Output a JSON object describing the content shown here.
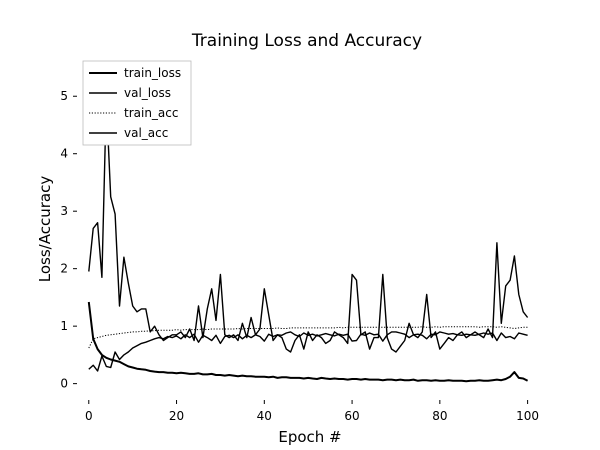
{
  "chart_data": {
    "type": "line",
    "title": "Training Loss and Accuracy",
    "xlabel": "Epoch #",
    "ylabel": "Loss/Accuracy",
    "xlim": [
      -2,
      101
    ],
    "ylim": [
      -0.25,
      5.7
    ],
    "xticks": [
      0,
      20,
      40,
      60,
      80,
      100
    ],
    "yticks": [
      0,
      1,
      2,
      3,
      4,
      5
    ],
    "grid": false,
    "legend_position": "top-left",
    "series": [
      {
        "name": "train_loss",
        "style": "solid-bold",
        "color": "#000000",
        "x": [
          0,
          1,
          2,
          3,
          4,
          5,
          6,
          7,
          8,
          9,
          10,
          11,
          12,
          13,
          14,
          15,
          16,
          17,
          18,
          19,
          20,
          21,
          22,
          23,
          24,
          25,
          26,
          27,
          28,
          29,
          30,
          31,
          32,
          33,
          34,
          35,
          36,
          37,
          38,
          39,
          40,
          41,
          42,
          43,
          44,
          45,
          46,
          47,
          48,
          49,
          50,
          51,
          52,
          53,
          54,
          55,
          56,
          57,
          58,
          59,
          60,
          61,
          62,
          63,
          64,
          65,
          66,
          67,
          68,
          69,
          70,
          71,
          72,
          73,
          74,
          75,
          76,
          77,
          78,
          79,
          80,
          81,
          82,
          83,
          84,
          85,
          86,
          87,
          88,
          89,
          90,
          91,
          92,
          93,
          94,
          95,
          96,
          97,
          98,
          99,
          100
        ],
        "y": [
          1.42,
          0.78,
          0.6,
          0.5,
          0.45,
          0.42,
          0.4,
          0.38,
          0.34,
          0.3,
          0.28,
          0.26,
          0.25,
          0.24,
          0.22,
          0.21,
          0.2,
          0.2,
          0.19,
          0.19,
          0.18,
          0.19,
          0.18,
          0.17,
          0.17,
          0.18,
          0.16,
          0.16,
          0.17,
          0.15,
          0.15,
          0.14,
          0.15,
          0.14,
          0.13,
          0.14,
          0.13,
          0.13,
          0.12,
          0.12,
          0.12,
          0.11,
          0.12,
          0.1,
          0.11,
          0.11,
          0.1,
          0.1,
          0.1,
          0.09,
          0.1,
          0.09,
          0.08,
          0.1,
          0.09,
          0.08,
          0.09,
          0.08,
          0.08,
          0.07,
          0.08,
          0.08,
          0.07,
          0.08,
          0.07,
          0.07,
          0.07,
          0.06,
          0.07,
          0.07,
          0.06,
          0.07,
          0.06,
          0.06,
          0.07,
          0.05,
          0.06,
          0.06,
          0.05,
          0.06,
          0.05,
          0.05,
          0.06,
          0.05,
          0.05,
          0.05,
          0.04,
          0.05,
          0.05,
          0.06,
          0.05,
          0.05,
          0.06,
          0.07,
          0.06,
          0.08,
          0.12,
          0.2,
          0.1,
          0.09,
          0.05
        ]
      },
      {
        "name": "val_loss",
        "style": "solid",
        "color": "#000000",
        "x": [
          0,
          1,
          2,
          3,
          4,
          5,
          6,
          7,
          8,
          9,
          10,
          11,
          12,
          13,
          14,
          15,
          16,
          17,
          18,
          19,
          20,
          21,
          22,
          23,
          24,
          25,
          26,
          27,
          28,
          29,
          30,
          31,
          32,
          33,
          34,
          35,
          36,
          37,
          38,
          39,
          40,
          41,
          42,
          43,
          44,
          45,
          46,
          47,
          48,
          49,
          50,
          51,
          52,
          53,
          54,
          55,
          56,
          57,
          58,
          59,
          60,
          61,
          62,
          63,
          64,
          65,
          66,
          67,
          68,
          69,
          70,
          71,
          72,
          73,
          74,
          75,
          76,
          77,
          78,
          79,
          80,
          81,
          82,
          83,
          84,
          85,
          86,
          87,
          88,
          89,
          90,
          91,
          92,
          93,
          94,
          95,
          96,
          97,
          98,
          99,
          100
        ],
        "y": [
          1.95,
          2.7,
          2.8,
          1.85,
          4.95,
          3.25,
          2.95,
          1.35,
          2.2,
          1.75,
          1.35,
          1.25,
          1.3,
          1.3,
          0.9,
          1.0,
          0.85,
          0.75,
          0.8,
          0.85,
          0.85,
          0.9,
          0.8,
          0.95,
          0.75,
          1.35,
          0.8,
          1.3,
          1.65,
          1.1,
          1.9,
          0.85,
          0.8,
          0.85,
          0.75,
          1.05,
          0.8,
          1.15,
          0.85,
          0.95,
          1.65,
          1.2,
          0.75,
          0.85,
          0.8,
          0.6,
          0.55,
          0.75,
          0.85,
          0.6,
          0.9,
          0.75,
          0.85,
          0.8,
          0.7,
          0.75,
          0.9,
          0.85,
          0.8,
          0.7,
          1.9,
          1.8,
          0.85,
          0.9,
          0.6,
          0.8,
          0.8,
          1.9,
          0.8,
          0.6,
          0.55,
          0.65,
          0.75,
          1.05,
          0.85,
          0.8,
          0.9,
          1.55,
          0.8,
          0.9,
          0.6,
          0.7,
          0.8,
          0.75,
          0.85,
          0.9,
          0.8,
          0.85,
          0.9,
          0.85,
          0.8,
          0.95,
          0.8,
          2.45,
          1.05,
          1.7,
          1.8,
          2.22,
          1.55,
          1.25,
          1.15
        ]
      },
      {
        "name": "train_acc",
        "style": "dotted",
        "color": "#000000",
        "x": [
          0,
          1,
          2,
          3,
          4,
          5,
          6,
          7,
          8,
          9,
          10,
          11,
          12,
          13,
          14,
          15,
          16,
          17,
          18,
          19,
          20,
          21,
          22,
          23,
          24,
          25,
          26,
          27,
          28,
          29,
          30,
          31,
          32,
          33,
          34,
          35,
          36,
          37,
          38,
          39,
          40,
          41,
          42,
          43,
          44,
          45,
          46,
          47,
          48,
          49,
          50,
          51,
          52,
          53,
          54,
          55,
          56,
          57,
          58,
          59,
          60,
          61,
          62,
          63,
          64,
          65,
          66,
          67,
          68,
          69,
          70,
          71,
          72,
          73,
          74,
          75,
          76,
          77,
          78,
          79,
          80,
          81,
          82,
          83,
          84,
          85,
          86,
          87,
          88,
          89,
          90,
          91,
          92,
          93,
          94,
          95,
          96,
          97,
          98,
          99,
          100
        ],
        "y": [
          0.62,
          0.78,
          0.8,
          0.82,
          0.84,
          0.85,
          0.86,
          0.87,
          0.88,
          0.89,
          0.9,
          0.9,
          0.91,
          0.91,
          0.92,
          0.92,
          0.93,
          0.93,
          0.93,
          0.93,
          0.94,
          0.93,
          0.94,
          0.94,
          0.94,
          0.94,
          0.95,
          0.94,
          0.95,
          0.95,
          0.95,
          0.95,
          0.95,
          0.95,
          0.96,
          0.95,
          0.96,
          0.96,
          0.96,
          0.96,
          0.96,
          0.96,
          0.96,
          0.97,
          0.96,
          0.96,
          0.97,
          0.97,
          0.97,
          0.97,
          0.97,
          0.97,
          0.97,
          0.97,
          0.97,
          0.97,
          0.97,
          0.98,
          0.97,
          0.98,
          0.98,
          0.98,
          0.98,
          0.98,
          0.98,
          0.98,
          0.98,
          0.98,
          0.98,
          0.98,
          0.98,
          0.98,
          0.98,
          0.98,
          0.98,
          0.98,
          0.99,
          0.98,
          0.98,
          0.99,
          0.98,
          0.99,
          0.99,
          0.99,
          0.99,
          0.99,
          0.99,
          0.99,
          0.99,
          0.98,
          0.99,
          0.99,
          0.99,
          0.98,
          0.99,
          0.98,
          0.97,
          0.96,
          0.97,
          0.98,
          0.98
        ]
      },
      {
        "name": "val_acc",
        "style": "solid",
        "color": "#000000",
        "x": [
          0,
          1,
          2,
          3,
          4,
          5,
          6,
          7,
          8,
          9,
          10,
          11,
          12,
          13,
          14,
          15,
          16,
          17,
          18,
          19,
          20,
          21,
          22,
          23,
          24,
          25,
          26,
          27,
          28,
          29,
          30,
          31,
          32,
          33,
          34,
          35,
          36,
          37,
          38,
          39,
          40,
          41,
          42,
          43,
          44,
          45,
          46,
          47,
          48,
          49,
          50,
          51,
          52,
          53,
          54,
          55,
          56,
          57,
          58,
          59,
          60,
          61,
          62,
          63,
          64,
          65,
          66,
          67,
          68,
          69,
          70,
          71,
          72,
          73,
          74,
          75,
          76,
          77,
          78,
          79,
          80,
          81,
          82,
          83,
          84,
          85,
          86,
          87,
          88,
          89,
          90,
          91,
          92,
          93,
          94,
          95,
          96,
          97,
          98,
          99,
          100
        ],
        "y": [
          0.25,
          0.32,
          0.22,
          0.48,
          0.3,
          0.28,
          0.55,
          0.42,
          0.5,
          0.55,
          0.62,
          0.66,
          0.7,
          0.72,
          0.75,
          0.78,
          0.8,
          0.78,
          0.82,
          0.8,
          0.83,
          0.78,
          0.85,
          0.8,
          0.86,
          0.72,
          0.84,
          0.8,
          0.75,
          0.84,
          0.7,
          0.82,
          0.84,
          0.8,
          0.85,
          0.78,
          0.84,
          0.8,
          0.85,
          0.82,
          0.74,
          0.86,
          0.82,
          0.85,
          0.84,
          0.88,
          0.9,
          0.85,
          0.82,
          0.88,
          0.84,
          0.86,
          0.83,
          0.85,
          0.87,
          0.85,
          0.83,
          0.86,
          0.84,
          0.86,
          0.74,
          0.75,
          0.86,
          0.84,
          0.88,
          0.85,
          0.86,
          0.74,
          0.85,
          0.9,
          0.9,
          0.88,
          0.86,
          0.8,
          0.85,
          0.86,
          0.84,
          0.78,
          0.86,
          0.85,
          0.9,
          0.88,
          0.86,
          0.87,
          0.85,
          0.84,
          0.86,
          0.85,
          0.84,
          0.86,
          0.88,
          0.86,
          0.88,
          0.75,
          0.88,
          0.8,
          0.82,
          0.78,
          0.88,
          0.86,
          0.84
        ]
      }
    ]
  }
}
